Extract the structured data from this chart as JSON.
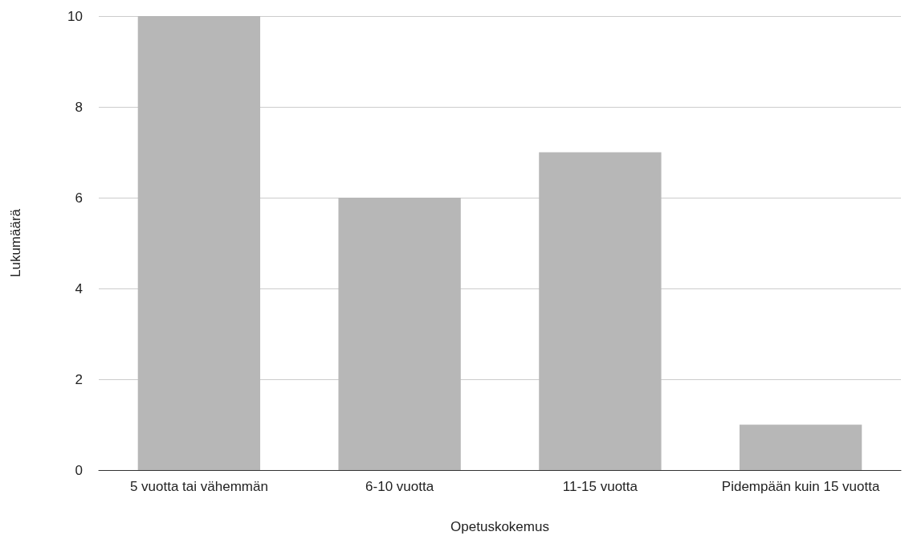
{
  "chart_data": {
    "type": "bar",
    "xlabel": "Opetuskokemus",
    "ylabel": "Lukumäärä",
    "categories": [
      "5 vuotta tai vähemmän",
      "6-10 vuotta",
      "11-15 vuotta",
      "Pidempään kuin 15 vuotta"
    ],
    "values": [
      10,
      6,
      7,
      1
    ],
    "color": "#b7b7b7",
    "ylim": [
      0,
      10
    ],
    "yticks": [
      0,
      2,
      4,
      6,
      8,
      10
    ],
    "grid": "y"
  }
}
